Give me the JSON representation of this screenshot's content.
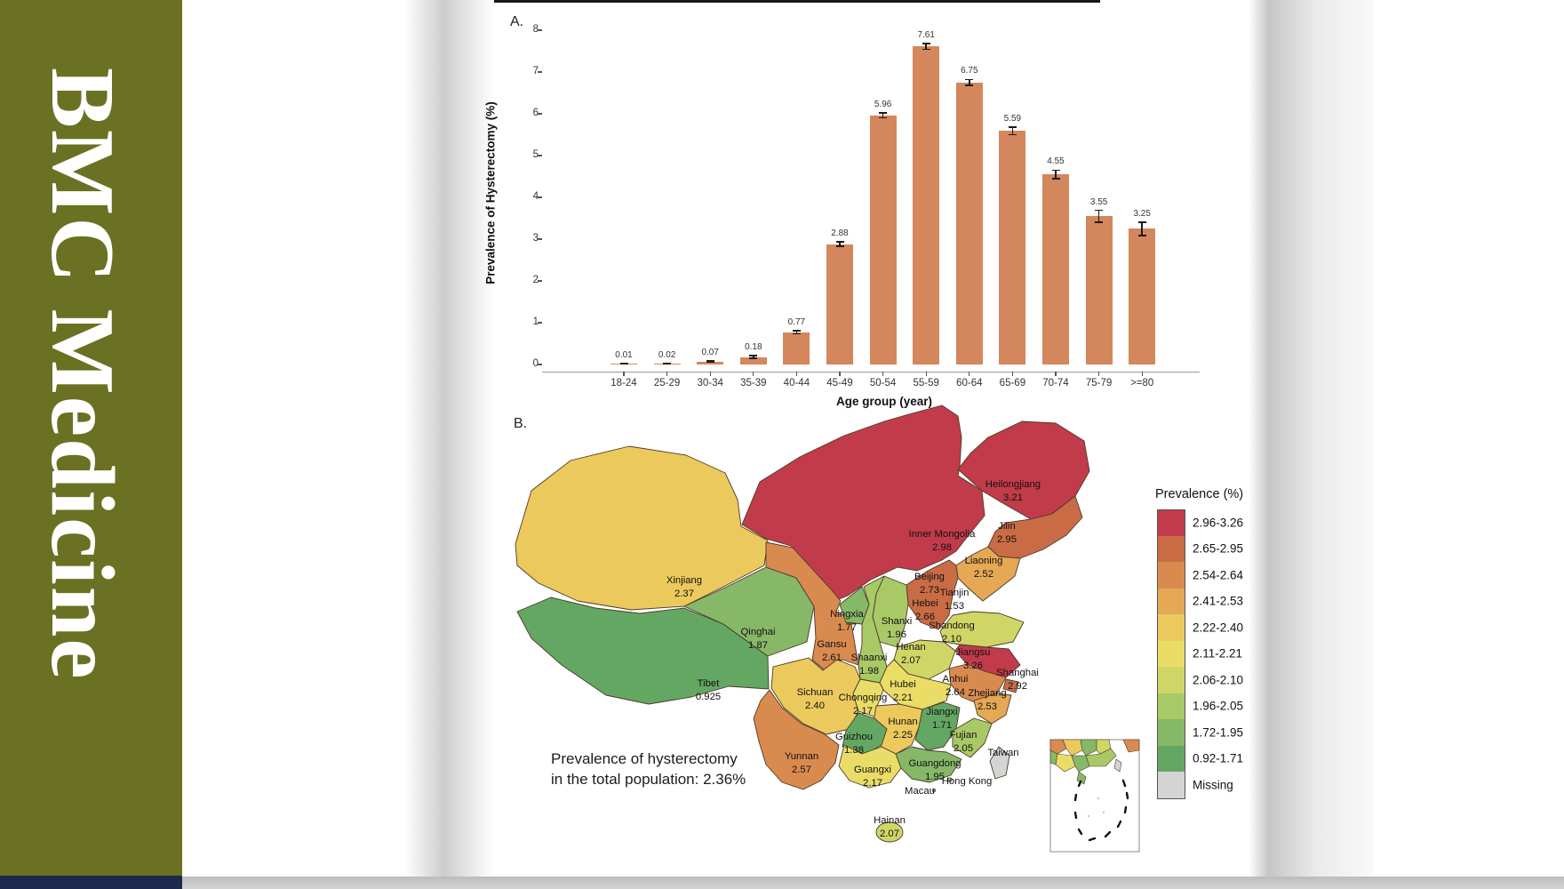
{
  "sidebar": {
    "journal_title": "BMC Medicine",
    "background": "#6a7122",
    "footer_color": "#1c2b4d"
  },
  "figure": {
    "panel_a_label": "A.",
    "panel_b_label": "B.",
    "chart_data": {
      "type": "bar",
      "title": "",
      "xlabel": "Age group (year)",
      "ylabel": "Prevalence of Hysterectomy (%)",
      "categories": [
        "18-24",
        "25-29",
        "30-34",
        "35-39",
        "40-44",
        "45-49",
        "50-54",
        "55-59",
        "60-64",
        "65-69",
        "70-74",
        "75-79",
        ">=80"
      ],
      "values": [
        0.01,
        0.02,
        0.07,
        0.18,
        0.77,
        2.88,
        5.96,
        7.61,
        6.75,
        5.59,
        4.55,
        3.55,
        3.25
      ],
      "value_labels": [
        "0.01",
        "0.02",
        "0.07",
        "0.18",
        "0.77",
        "2.88",
        "5.96",
        "7.61",
        "6.75",
        "5.59",
        "4.55",
        "3.55",
        "3.25"
      ],
      "errors": [
        0.01,
        0.01,
        0.02,
        0.03,
        0.04,
        0.05,
        0.06,
        0.07,
        0.07,
        0.09,
        0.1,
        0.14,
        0.16
      ],
      "ylim": [
        0,
        8
      ],
      "yticks": [
        0,
        1,
        2,
        3,
        4,
        5,
        6,
        7,
        8
      ],
      "grid": false,
      "bar_color": "#d4875c"
    },
    "map": {
      "annotation_line1": "Prevalence of hysterectomy",
      "annotation_line2": "in the total population: 2.36%",
      "legend_title": "Prevalence (%)",
      "legend_bins": [
        {
          "range": "2.96-3.26",
          "color": "#c23b4a"
        },
        {
          "range": "2.65-2.95",
          "color": "#c96c45"
        },
        {
          "range": "2.54-2.64",
          "color": "#d98a4f"
        },
        {
          "range": "2.41-2.53",
          "color": "#e5a854"
        },
        {
          "range": "2.22-2.40",
          "color": "#ecc95c"
        },
        {
          "range": "2.11-2.21",
          "color": "#eadd67"
        },
        {
          "range": "2.06-2.10",
          "color": "#cfd666"
        },
        {
          "range": "1.96-2.05",
          "color": "#a9c967"
        },
        {
          "range": "1.72-1.95",
          "color": "#86b868"
        },
        {
          "range": "0.92-1.71",
          "color": "#64a763"
        },
        {
          "range": "Missing",
          "color": "#d4d4d4"
        }
      ],
      "provinces": [
        {
          "name": "Heilongjiang",
          "value": "3.21",
          "color": "#c23b4a"
        },
        {
          "name": "Inner Mongolia",
          "value": "2.98",
          "color": "#c23b4a"
        },
        {
          "name": "Jilin",
          "value": "2.95",
          "color": "#c96c45"
        },
        {
          "name": "Liaoning",
          "value": "2.52",
          "color": "#e5a854"
        },
        {
          "name": "Beijing",
          "value": "2.73",
          "color": "#c96c45"
        },
        {
          "name": "Tianjin",
          "value": "1.53",
          "color": "#64a763"
        },
        {
          "name": "Hebei",
          "value": "2.66",
          "color": "#c96c45"
        },
        {
          "name": "Shanxi",
          "value": "1.96",
          "color": "#a9c967"
        },
        {
          "name": "Shandong",
          "value": "2.10",
          "color": "#cfd666"
        },
        {
          "name": "Henan",
          "value": "2.07",
          "color": "#cfd666"
        },
        {
          "name": "Jiangsu",
          "value": "3.26",
          "color": "#c23b4a"
        },
        {
          "name": "Shanghai",
          "value": "2.92",
          "color": "#c96c45"
        },
        {
          "name": "Anhui",
          "value": "2.64",
          "color": "#d98a4f"
        },
        {
          "name": "Hubei",
          "value": "2.21",
          "color": "#eadd67"
        },
        {
          "name": "Zhejiang",
          "value": "2.53",
          "color": "#e5a854"
        },
        {
          "name": "Xinjiang",
          "value": "2.37",
          "color": "#ecc95c"
        },
        {
          "name": "Ningxia",
          "value": "1.77",
          "color": "#86b868"
        },
        {
          "name": "Qinghai",
          "value": "1.87",
          "color": "#86b868"
        },
        {
          "name": "Gansu",
          "value": "2.61",
          "color": "#d98a4f"
        },
        {
          "name": "Shaanxi",
          "value": "1.98",
          "color": "#a9c967"
        },
        {
          "name": "Tibet",
          "value": "0.925",
          "color": "#64a763"
        },
        {
          "name": "Sichuan",
          "value": "2.40",
          "color": "#ecc95c"
        },
        {
          "name": "Chongqing",
          "value": "2.17",
          "color": "#eadd67"
        },
        {
          "name": "Hunan",
          "value": "2.25",
          "color": "#ecc95c"
        },
        {
          "name": "Jiangxi",
          "value": "1.71",
          "color": "#64a763"
        },
        {
          "name": "Guizhou",
          "value": "1.38",
          "color": "#64a763"
        },
        {
          "name": "Fujian",
          "value": "2.05",
          "color": "#a9c967"
        },
        {
          "name": "Yunnan",
          "value": "2.57",
          "color": "#d98a4f"
        },
        {
          "name": "Guangxi",
          "value": "2.17",
          "color": "#eadd67"
        },
        {
          "name": "Guangdong",
          "value": "1.95",
          "color": "#86b868"
        },
        {
          "name": "Hainan",
          "value": "2.07",
          "color": "#cfd666"
        },
        {
          "name": "Taiwan",
          "value": "",
          "color": "#d4d4d4"
        },
        {
          "name": "Hong Kong",
          "value": "",
          "color": "#d4d4d4"
        },
        {
          "name": "Macau",
          "value": "",
          "color": "#d4d4d4"
        }
      ]
    }
  }
}
